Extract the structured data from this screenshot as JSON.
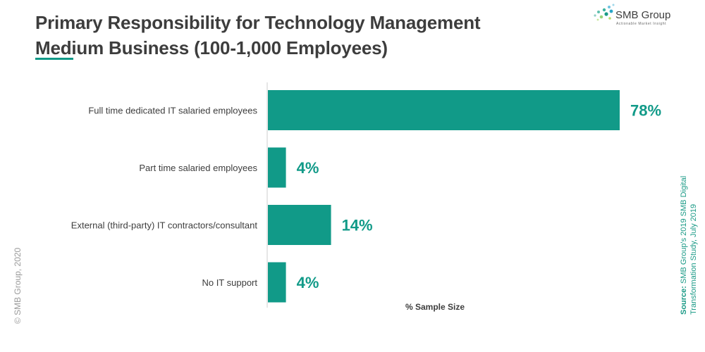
{
  "header": {
    "title_line1": "Primary Responsibility for Technology Management",
    "title_line2": "Medium Business (100-1,000 Employees)"
  },
  "logo": {
    "name": "SMB Group",
    "tagline": "Actionable Market Insight"
  },
  "footer": {
    "copyright": "© SMB Group, 2020",
    "source_label": "Source:",
    "source_text": "SMB Group's 2019 SMB Digital Transformation Study, July 2019"
  },
  "colors": {
    "bar": "#119a88",
    "title": "#3d3d3d",
    "accent": "#119a88"
  },
  "chart_data": {
    "type": "bar",
    "orientation": "horizontal",
    "categories": [
      "Full time dedicated IT salaried employees",
      "Part time salaried employees",
      "External (third-party) IT contractors/consultant",
      "No IT support"
    ],
    "values": [
      78,
      4,
      14,
      4
    ],
    "value_labels": [
      "78%",
      "4%",
      "14%",
      "4%"
    ],
    "xlabel": "% Sample Size",
    "xlim": [
      0,
      78
    ],
    "grid": false
  }
}
